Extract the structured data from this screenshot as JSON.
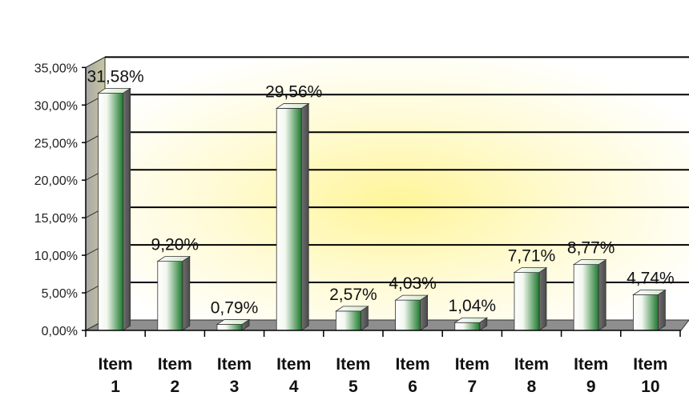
{
  "chart_data": {
    "type": "bar",
    "categories": [
      [
        "Item",
        "1"
      ],
      [
        "Item",
        "2"
      ],
      [
        "Item",
        "3"
      ],
      [
        "Item",
        "4"
      ],
      [
        "Item",
        "5"
      ],
      [
        "Item",
        "6"
      ],
      [
        "Item",
        "7"
      ],
      [
        "Item",
        "8"
      ],
      [
        "Item",
        "9"
      ],
      [
        "Item",
        "10"
      ]
    ],
    "values": [
      31.58,
      9.2,
      0.79,
      29.56,
      2.57,
      4.03,
      1.04,
      7.71,
      8.77,
      4.74
    ],
    "data_labels": [
      "31,58%",
      "9,20%",
      "0,79%",
      "29,56%",
      "2,57%",
      "4,03%",
      "1,04%",
      "7,71%",
      "8,77%",
      "4,74%"
    ],
    "yticks": [
      "0,00%",
      "5,00%",
      "10,00%",
      "15,00%",
      "20,00%",
      "25,00%",
      "30,00%",
      "35,00%"
    ],
    "ylim": [
      0,
      35
    ],
    "grid": true,
    "style": "3d-cylindrical-bar",
    "colors": {
      "bar_light": "#ffffff",
      "bar_dark": "#1e7a2e",
      "plot_glow": "#fff3a0",
      "floor": "#8e8e8e",
      "wall": "#b5b5b5",
      "grid": "#000000"
    }
  }
}
